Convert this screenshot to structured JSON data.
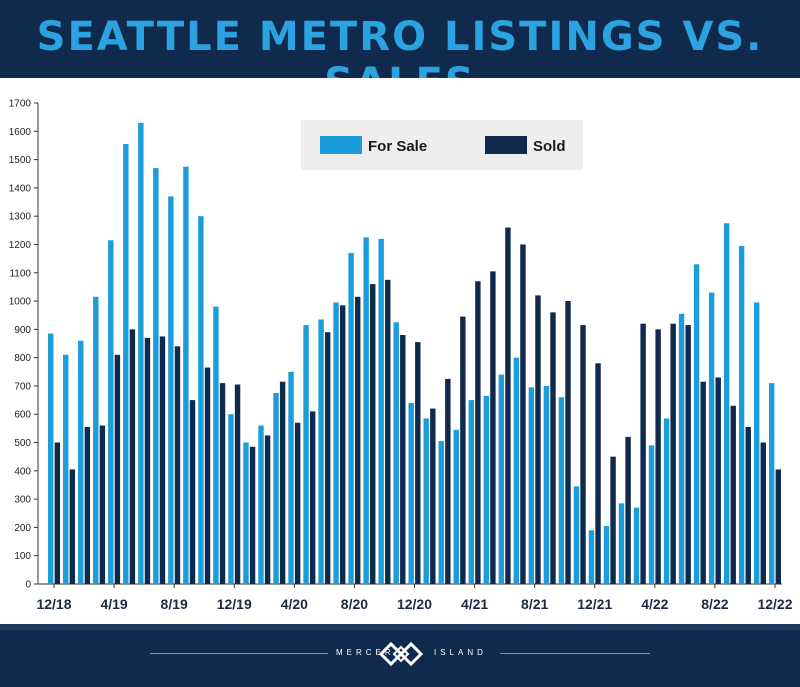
{
  "header": {
    "title": "SEATTLE METRO LISTINGS VS. SALES"
  },
  "footer": {
    "brand_left": "MERCER",
    "brand_right": "ISLAND",
    "logo_icon": "windermere-w-logo-icon"
  },
  "colors": {
    "for_sale": "#1b9ddb",
    "sold": "#0f2a4c",
    "header_bg": "#0f2a4c",
    "title": "#2aa3e0",
    "legend_bg": "#eeeeee"
  },
  "chart_data": {
    "type": "bar",
    "title": "SEATTLE METRO LISTINGS VS. SALES",
    "xlabel": "",
    "ylabel": "",
    "ylim": [
      0,
      1700
    ],
    "yticks": [
      0,
      100,
      200,
      300,
      400,
      500,
      600,
      700,
      800,
      900,
      1000,
      1100,
      1200,
      1300,
      1400,
      1500,
      1600,
      1700
    ],
    "grid": false,
    "legend": "top-center",
    "categories": [
      "12/18",
      "1/19",
      "2/19",
      "3/19",
      "4/19",
      "5/19",
      "6/19",
      "7/19",
      "8/19",
      "9/19",
      "10/19",
      "11/19",
      "12/19",
      "1/20",
      "2/20",
      "3/20",
      "4/20",
      "5/20",
      "6/20",
      "7/20",
      "8/20",
      "9/20",
      "10/20",
      "11/20",
      "12/20",
      "1/21",
      "2/21",
      "3/21",
      "4/21",
      "5/21",
      "6/21",
      "7/21",
      "8/21",
      "9/21",
      "10/21",
      "11/21",
      "12/21",
      "1/22",
      "2/22",
      "3/22",
      "4/22",
      "5/22",
      "6/22",
      "7/22",
      "8/22",
      "9/22",
      "10/22",
      "11/22",
      "12/22"
    ],
    "x_tick_labels": [
      "12/18",
      "4/19",
      "8/19",
      "12/19",
      "4/20",
      "8/20",
      "12/20",
      "4/21",
      "8/21",
      "12/21",
      "4/22",
      "8/22",
      "12/22"
    ],
    "series": [
      {
        "name": "For Sale",
        "values": [
          885,
          810,
          860,
          1015,
          1215,
          1555,
          1630,
          1470,
          1370,
          1475,
          1300,
          980,
          600,
          500,
          560,
          675,
          750,
          915,
          935,
          995,
          1170,
          1225,
          1220,
          925,
          640,
          585,
          505,
          545,
          650,
          665,
          740,
          800,
          695,
          700,
          660,
          345,
          190,
          205,
          285,
          270,
          490,
          585,
          955,
          1130,
          1030,
          1275,
          1195,
          995,
          710
        ]
      },
      {
        "name": "Sold",
        "values": [
          500,
          405,
          555,
          560,
          810,
          900,
          870,
          875,
          840,
          650,
          765,
          710,
          705,
          485,
          525,
          715,
          570,
          610,
          890,
          985,
          1015,
          1060,
          1075,
          880,
          855,
          620,
          725,
          945,
          1070,
          1105,
          1260,
          1200,
          1020,
          960,
          1000,
          915,
          780,
          450,
          520,
          920,
          900,
          920,
          915,
          715,
          730,
          630,
          555,
          500,
          405
        ]
      }
    ]
  }
}
